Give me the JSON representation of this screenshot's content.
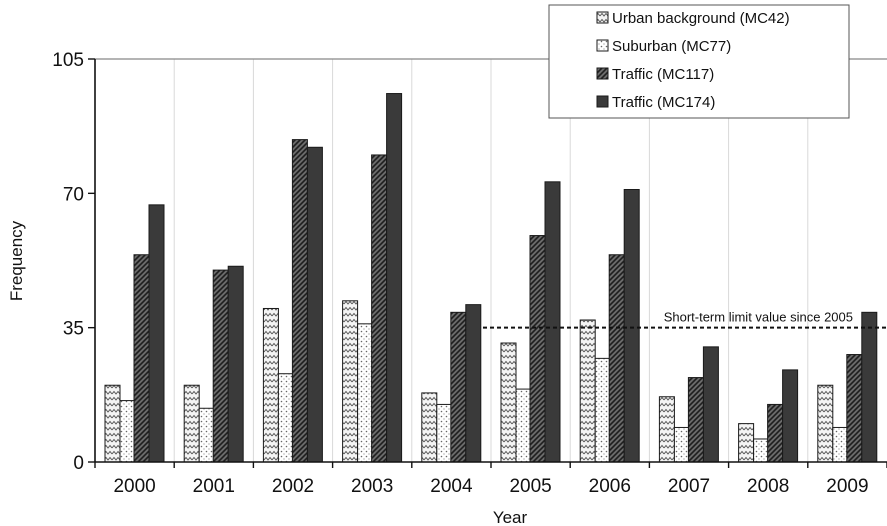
{
  "chart_data": {
    "type": "bar",
    "categories": [
      "2000",
      "2001",
      "2002",
      "2003",
      "2004",
      "2005",
      "2006",
      "2007",
      "2008",
      "2009"
    ],
    "series": [
      {
        "name": "Urban background (MC42)",
        "pattern": "zigzag",
        "values": [
          20,
          20,
          40,
          42,
          18,
          31,
          37,
          17,
          10,
          20
        ]
      },
      {
        "name": "Suburban (MC77)",
        "pattern": "dots",
        "values": [
          16,
          14,
          23,
          36,
          15,
          19,
          27,
          9,
          6,
          9
        ]
      },
      {
        "name": "Traffic (MC117)",
        "pattern": "diagonal",
        "values": [
          54,
          50,
          84,
          80,
          39,
          59,
          54,
          22,
          15,
          28
        ]
      },
      {
        "name": "Traffic (MC174)",
        "pattern": "solid",
        "values": [
          67,
          51,
          82,
          96,
          41,
          73,
          71,
          30,
          24,
          39
        ]
      }
    ],
    "xlabel": "Year",
    "ylabel": "Frequency",
    "ylim": [
      0,
      105
    ],
    "yticks": [
      "0",
      "35",
      "70",
      "105"
    ],
    "grid": "vertical",
    "legend_position": "top-right",
    "annotation": {
      "text": "Short-term limit value since 2005",
      "y": 35,
      "from_category": "2005",
      "to_category": "2009",
      "style": "dashed"
    },
    "colors": {
      "outline": "#1a1a1a",
      "solid_fill": "#3a3a3a",
      "grid": "#d9d9d9"
    }
  }
}
